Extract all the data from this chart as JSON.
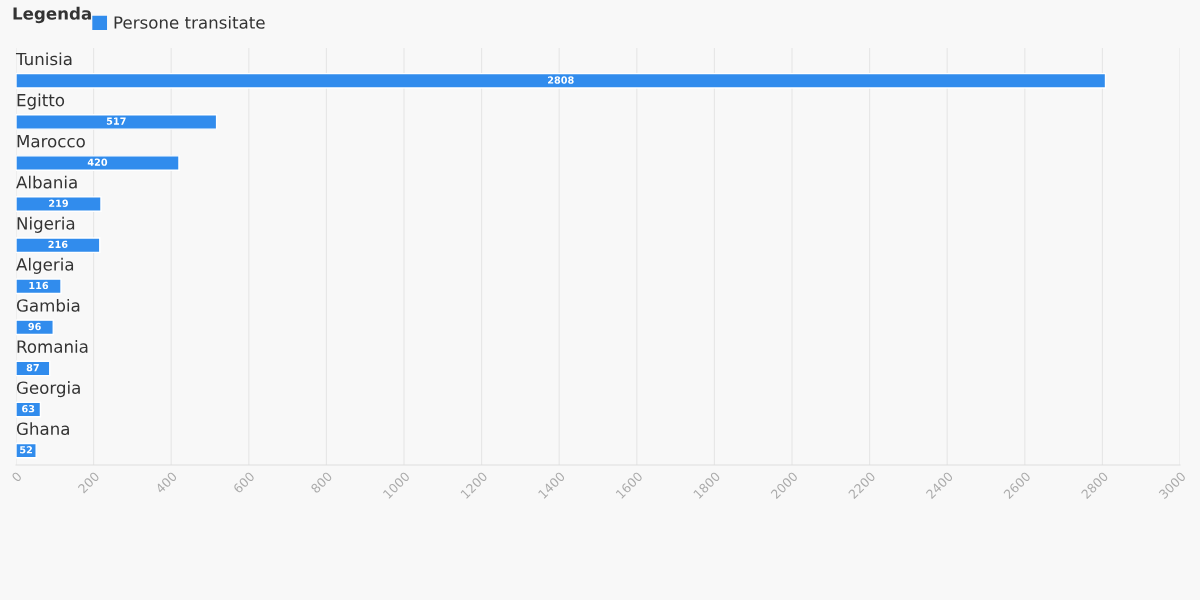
{
  "chart_data": {
    "type": "bar",
    "orientation": "horizontal",
    "legend_title": "Legenda",
    "legend": "top left",
    "categories": [
      "Tunisia",
      "Egitto",
      "Marocco",
      "Albania",
      "Nigeria",
      "Algeria",
      "Gambia",
      "Romania",
      "Georgia",
      "Ghana"
    ],
    "series": [
      {
        "name": "Persone transitate",
        "color": "#318ced",
        "values": [
          2808,
          517,
          420,
          219,
          216,
          116,
          96,
          87,
          63,
          52
        ]
      }
    ],
    "xlim": [
      0,
      3000
    ],
    "xticks": [
      0,
      200,
      400,
      600,
      800,
      1000,
      1200,
      1400,
      1600,
      1800,
      2000,
      2200,
      2400,
      2600,
      2800,
      3000
    ],
    "grid": "x",
    "data_labels": true
  }
}
